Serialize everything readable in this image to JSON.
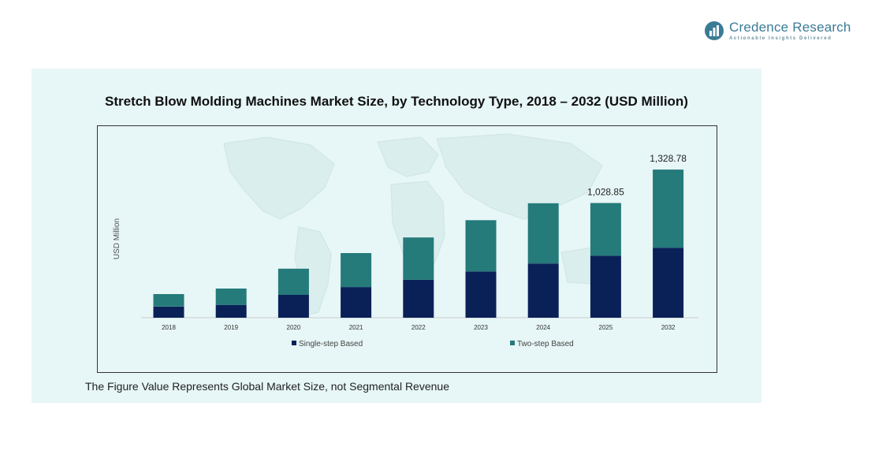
{
  "brand": {
    "name": "Credence Research",
    "tagline": "Actionable Insights Delivered",
    "color": "#3b7b96"
  },
  "footnote": "The Figure Value Represents Global Market Size, not Segmental Revenue",
  "colors": {
    "single_step": "#0a2158",
    "two_step": "#257a7a",
    "panel_bg": "#e7f6f6"
  },
  "chart_data": {
    "type": "bar",
    "stacked": true,
    "title": "Stretch Blow Molding Machines Market Size, by Technology Type, 2018 – 2032 (USD Million)",
    "xlabel": "",
    "ylabel": "USD Million",
    "categories": [
      "2018",
      "2019",
      "2020",
      "2021",
      "2022",
      "2023",
      "2024",
      "2025",
      "2032"
    ],
    "series": [
      {
        "name": "Single-step Based",
        "values": [
          100,
          115,
          205,
          275,
          340,
          415,
          487,
          556,
          628
        ]
      },
      {
        "name": "Two-step Based",
        "values": [
          112,
          147,
          235,
          305,
          380,
          460,
          540,
          473,
          701
        ]
      }
    ],
    "totals_labels": [
      {
        "category": "2025",
        "text": "1,028.85"
      },
      {
        "category": "2032",
        "text": "1,328.78"
      }
    ],
    "ylim": [
      0,
      1330
    ],
    "grid": false,
    "legend": "bottom",
    "background": "world-map-watermark"
  }
}
